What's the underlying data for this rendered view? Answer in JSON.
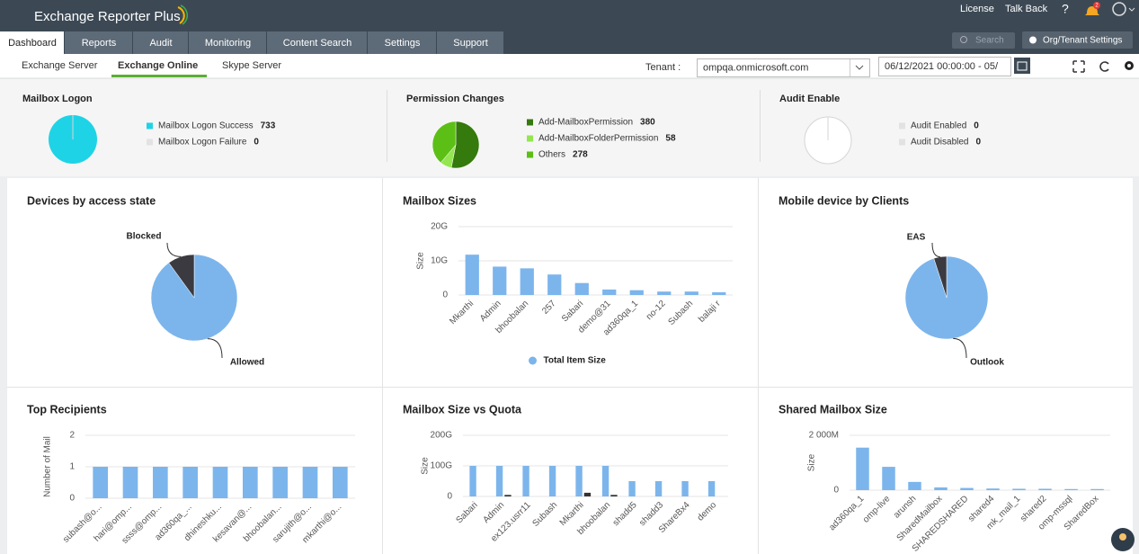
{
  "header": {
    "logo": "Exchange Reporter Plus",
    "links": [
      "License",
      "Talk Back",
      "?"
    ],
    "notifications_count": "2"
  },
  "nav": {
    "tabs": [
      "Dashboard",
      "Reports",
      "Audit",
      "Monitoring",
      "Content Search",
      "Settings",
      "Support"
    ],
    "search_placeholder": "Search",
    "org_button": "Org/Tenant Settings"
  },
  "subnav": {
    "tabs": [
      "Exchange Server",
      "Exchange Online",
      "Skype Server"
    ],
    "tenant_label": "Tenant :",
    "tenant_value": "ompqa.onmicrosoft.com",
    "date_range": "06/12/2021 00:00:00 - 05/"
  },
  "chart_data": [
    {
      "type": "pie",
      "title": "Mailbox Logon",
      "categories": [
        "Mailbox Logon Success",
        "Mailbox Logon Failure"
      ],
      "values": [
        733,
        0
      ],
      "colors": [
        "#1fd3e6",
        "#e2e2e2"
      ],
      "legend": true
    },
    {
      "type": "pie",
      "title": "Permission Changes",
      "categories": [
        "Add-MailboxPermission",
        "Add-MailboxFolderPermission",
        "Others"
      ],
      "values": [
        380,
        58,
        278
      ],
      "colors": [
        "#357a0c",
        "#93e650",
        "#5cbf16"
      ],
      "legend": true
    },
    {
      "type": "pie",
      "title": "Audit Enable",
      "categories": [
        "Audit Enabled",
        "Audit Disabled"
      ],
      "values": [
        0,
        0
      ],
      "colors": [
        "#e2e2e2",
        "#e2e2e2"
      ],
      "legend": true
    },
    {
      "type": "pie",
      "title": "Devices by access state",
      "categories": [
        "Allowed",
        "Blocked"
      ],
      "values": [
        90,
        10
      ],
      "colors": [
        "#7cb5ec",
        "#3a3a40"
      ],
      "legend": false
    },
    {
      "type": "bar",
      "title": "Mailbox Sizes",
      "y_label": "Size",
      "categories": [
        "Mkarthi",
        "Admin",
        "bhoobalan",
        "257",
        "Sabari",
        "demo@31",
        "ad360qa_1",
        "no-12",
        "Subash",
        "balaji r"
      ],
      "series": [
        {
          "name": "Total Item Size",
          "color": "#7cb5ec",
          "values": [
            11.8,
            8.3,
            7.8,
            6,
            3.5,
            1.6,
            1.4,
            1,
            1,
            0.8
          ]
        }
      ],
      "ylim": [
        0,
        20
      ],
      "yticks": [
        0,
        {
          "value": 10,
          "label": "10G"
        },
        {
          "value": 20,
          "label": "20G"
        }
      ],
      "grid": true
    },
    {
      "type": "pie",
      "title": "Mobile device by Clients",
      "categories": [
        "Outlook",
        "EAS"
      ],
      "values": [
        95,
        5
      ],
      "colors": [
        "#7cb5ec",
        "#3a3a40"
      ],
      "legend": false
    },
    {
      "type": "bar",
      "title": "Top Recipients",
      "y_label": "Number of Mail",
      "categories": [
        "subash@o...",
        "hari@omp...",
        "ssss@omp...",
        "ad360qa_...",
        "dhineshku...",
        "kesavan@...",
        "bhoobalan...",
        "sarujith@o...",
        "mkarthi@o..."
      ],
      "series": [
        {
          "color": "#7cb5ec",
          "values": [
            1,
            1,
            1,
            1,
            1,
            1,
            1,
            1,
            1
          ]
        }
      ],
      "ylim": [
        0,
        2
      ],
      "yticks": [
        0,
        1,
        2
      ],
      "grid": true
    },
    {
      "type": "bar",
      "title": "Mailbox Size vs Quota",
      "y_label": "Size",
      "categories": [
        "Sabari",
        "Admin",
        "ex123.usrr11",
        "Subash",
        "Mkarthi",
        "bhoobalan",
        "shadd5",
        "shadd3",
        "ShareBx4",
        "demo"
      ],
      "series": [
        {
          "color": "#7cb5ec",
          "values": [
            100,
            100,
            100,
            100,
            100,
            100,
            50,
            50,
            50,
            50
          ]
        },
        {
          "color": "#333333",
          "values": [
            0,
            5,
            0,
            0,
            12,
            5,
            0,
            0,
            0,
            0
          ]
        }
      ],
      "ylim": [
        0,
        200
      ],
      "yticks": [
        0,
        {
          "value": 100,
          "label": "100G"
        },
        {
          "value": 200,
          "label": "200G"
        }
      ],
      "grid": true
    },
    {
      "type": "bar",
      "title": "Shared Mailbox Size",
      "y_label": "Size",
      "categories": [
        "ad360qa_1",
        "omp-live",
        "arunsh",
        "SharedMailbox",
        "SHAREDSHARED",
        "shared4",
        "mk_mail_1",
        "shared2",
        "omp-mssql",
        "SharedBox"
      ],
      "series": [
        {
          "color": "#7cb5ec",
          "values": [
            1550,
            850,
            300,
            100,
            80,
            60,
            50,
            50,
            40,
            40
          ]
        }
      ],
      "ylim": [
        0,
        2000
      ],
      "yticks": [
        0,
        {
          "value": 2000,
          "label": "2 000M"
        }
      ],
      "grid": true
    }
  ]
}
